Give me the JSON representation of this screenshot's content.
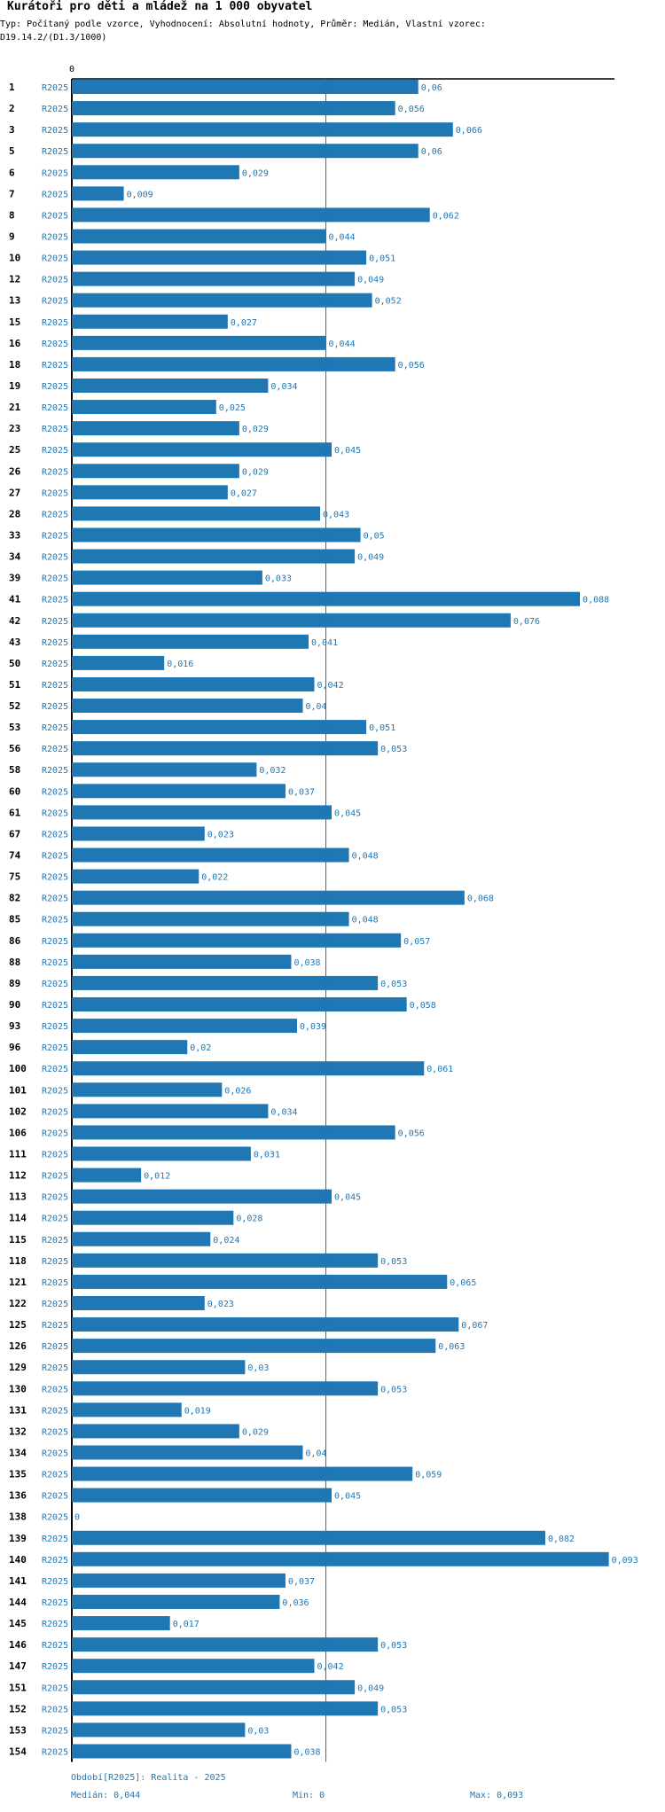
{
  "chart_data": {
    "type": "bar",
    "orientation": "horizontal",
    "title": "Kurátoři pro děti a mládež na 1 000 obyvatel",
    "subtitle": "Typ: Počítaný podle vzorce, Vyhodnocení: Absolutní hodnoty, Průměr: Medián, Vlastní vzorec: D19.14.2/(D1.3/1000)",
    "axis_zero_label": "0",
    "series_label": "R2025",
    "xlim": [
      0,
      0.094
    ],
    "median": 0.044,
    "categories": [
      "1",
      "2",
      "3",
      "5",
      "6",
      "7",
      "8",
      "9",
      "10",
      "12",
      "13",
      "15",
      "16",
      "18",
      "19",
      "21",
      "23",
      "25",
      "26",
      "27",
      "28",
      "33",
      "34",
      "39",
      "41",
      "42",
      "43",
      "50",
      "51",
      "52",
      "53",
      "56",
      "58",
      "60",
      "61",
      "67",
      "74",
      "75",
      "82",
      "85",
      "86",
      "88",
      "89",
      "90",
      "93",
      "96",
      "100",
      "101",
      "102",
      "106",
      "111",
      "112",
      "113",
      "114",
      "115",
      "118",
      "121",
      "122",
      "125",
      "126",
      "129",
      "130",
      "131",
      "132",
      "134",
      "135",
      "136",
      "138",
      "139",
      "140",
      "141",
      "144",
      "145",
      "146",
      "147",
      "151",
      "152",
      "153",
      "154"
    ],
    "values": [
      0.06,
      0.056,
      0.066,
      0.06,
      0.029,
      0.009,
      0.062,
      0.044,
      0.051,
      0.049,
      0.052,
      0.027,
      0.044,
      0.056,
      0.034,
      0.025,
      0.029,
      0.045,
      0.029,
      0.027,
      0.043,
      0.05,
      0.049,
      0.033,
      0.088,
      0.076,
      0.041,
      0.016,
      0.042,
      0.04,
      0.051,
      0.053,
      0.032,
      0.037,
      0.045,
      0.023,
      0.048,
      0.022,
      0.068,
      0.048,
      0.057,
      0.038,
      0.053,
      0.058,
      0.039,
      0.02,
      0.061,
      0.026,
      0.034,
      0.056,
      0.031,
      0.012,
      0.045,
      0.028,
      0.024,
      0.053,
      0.065,
      0.023,
      0.067,
      0.063,
      0.03,
      0.053,
      0.019,
      0.029,
      0.04,
      0.059,
      0.045,
      0,
      0.082,
      0.093,
      0.037,
      0.036,
      0.017,
      0.053,
      0.042,
      0.049,
      0.053,
      0.03,
      0.038
    ],
    "value_labels": [
      "0,06",
      "0,056",
      "0,066",
      "0,06",
      "0,029",
      "0,009",
      "0,062",
      "0,044",
      "0,051",
      "0,049",
      "0,052",
      "0,027",
      "0,044",
      "0,056",
      "0,034",
      "0,025",
      "0,029",
      "0,045",
      "0,029",
      "0,027",
      "0,043",
      "0,05",
      "0,049",
      "0,033",
      "0,088",
      "0,076",
      "0,041",
      "0,016",
      "0,042",
      "0,04",
      "0,051",
      "0,053",
      "0,032",
      "0,037",
      "0,045",
      "0,023",
      "0,048",
      "0,022",
      "0,068",
      "0,048",
      "0,057",
      "0,038",
      "0,053",
      "0,058",
      "0,039",
      "0,02",
      "0,061",
      "0,026",
      "0,034",
      "0,056",
      "0,031",
      "0,012",
      "0,045",
      "0,028",
      "0,024",
      "0,053",
      "0,065",
      "0,023",
      "0,067",
      "0,063",
      "0,03",
      "0,053",
      "0,019",
      "0,029",
      "0,04",
      "0,059",
      "0,045",
      "0",
      "0,082",
      "0,093",
      "0,037",
      "0,036",
      "0,017",
      "0,053",
      "0,042",
      "0,049",
      "0,053",
      "0,03",
      "0,038"
    ],
    "bar_color": "#1f77b4",
    "median_line_color": "#1f77b4"
  },
  "footer": {
    "period": "Období[R2025]: Realita - 2025",
    "median": "Medián: 0,044",
    "min": "Min: 0",
    "max": "Max: 0,093"
  }
}
